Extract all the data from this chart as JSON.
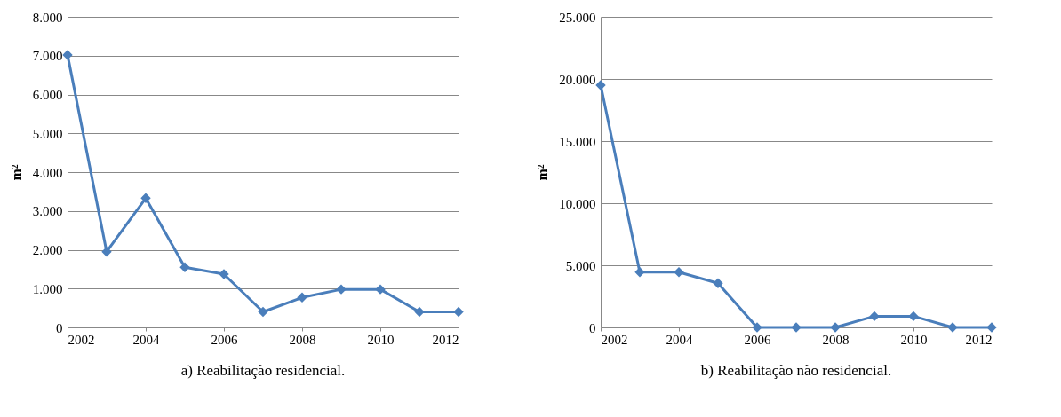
{
  "chart_data": [
    {
      "type": "line",
      "title": "a) Reabilitação residencial.",
      "ylabel": "m²",
      "x": [
        2002,
        2003,
        2004,
        2005,
        2006,
        2007,
        2008,
        2009,
        2010,
        2011,
        2012
      ],
      "series": [
        {
          "color": "#4a7ebb",
          "values": [
            7020,
            1950,
            3330,
            1550,
            1370,
            400,
            770,
            980,
            980,
            400,
            400
          ]
        }
      ],
      "xlim": [
        2002,
        2012
      ],
      "xticks": [
        2002,
        2004,
        2006,
        2008,
        2010,
        2012
      ],
      "ylim": [
        0,
        8000
      ],
      "yticks": [
        0,
        {
          "value": 1000,
          "label": "1.000"
        },
        {
          "value": 2000,
          "label": "2.000"
        },
        {
          "value": 3000,
          "label": "3.000"
        },
        {
          "value": 4000,
          "label": "4.000"
        },
        {
          "value": 5000,
          "label": "5.000"
        },
        {
          "value": 6000,
          "label": "6.000"
        },
        {
          "value": 7000,
          "label": "7.000"
        },
        {
          "value": 8000,
          "label": "8.000"
        }
      ],
      "grid": "y",
      "marker": "diamond",
      "line_style": "solid"
    },
    {
      "type": "line",
      "title": "b) Reabilitação não residencial.",
      "ylabel": "m²",
      "x": [
        2002,
        2003,
        2004,
        2005,
        2006,
        2007,
        2008,
        2009,
        2010,
        2011,
        2012
      ],
      "series": [
        {
          "color": "#4a7ebb",
          "values": [
            19500,
            4450,
            4450,
            3550,
            0,
            0,
            0,
            900,
            900,
            0,
            0
          ]
        }
      ],
      "xlim": [
        2002,
        2012
      ],
      "xticks": [
        2002,
        2004,
        2006,
        2008,
        2010,
        2012
      ],
      "ylim": [
        0,
        25000
      ],
      "yticks": [
        0,
        {
          "value": 5000,
          "label": "5.000"
        },
        {
          "value": 10000,
          "label": "10.000"
        },
        {
          "value": 15000,
          "label": "15.000"
        },
        {
          "value": 20000,
          "label": "20.000"
        },
        {
          "value": 25000,
          "label": "25.000"
        }
      ],
      "grid": "y",
      "marker": "diamond",
      "line_style": "solid"
    }
  ]
}
